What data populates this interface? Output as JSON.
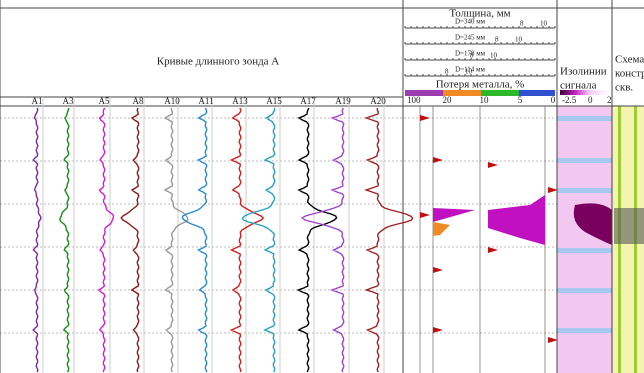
{
  "header": {
    "curves_title": "Кривые длинного зонда А",
    "thickness_title": "Толщина, мм",
    "loss_title": "Потеря металла, %",
    "isolines_title": [
      "Изолинии",
      "сигнала"
    ],
    "scheme_title": [
      "Схема",
      "констр",
      "скв."
    ]
  },
  "curves": [
    "A1",
    "A3",
    "A5",
    "A8",
    "A10",
    "A11",
    "A13",
    "A15",
    "A17",
    "A19",
    "A20"
  ],
  "thickness_scales": [
    {
      "label": "D=340 мм",
      "ticks": [
        "8",
        "10"
      ]
    },
    {
      "label": "D=245 мм",
      "ticks": [
        "8",
        "10"
      ]
    },
    {
      "label": "D=178 мм",
      "ticks": [
        "8",
        "10"
      ]
    },
    {
      "label": "D=114 мм",
      "ticks": [
        "8",
        "10"
      ]
    }
  ],
  "loss_scale": [
    "100",
    "20",
    "10",
    "5",
    "0"
  ],
  "isolines_scale": [
    "-2.5",
    "0",
    "2"
  ]
}
